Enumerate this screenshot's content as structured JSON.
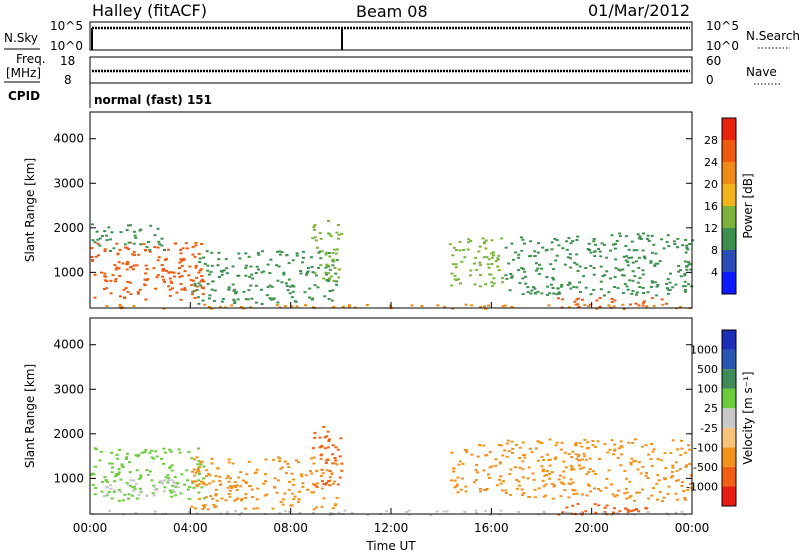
{
  "header": {
    "station": "Halley (fitACF)",
    "beam": "Beam 08",
    "date": "01/Mar/2012"
  },
  "nsky_panel": {
    "left_label": "N.Sky",
    "left_ticks": [
      "10^5",
      "10^0"
    ],
    "right_ticks": [
      "10^5",
      "10^0"
    ],
    "right_label": "N.Search"
  },
  "freq_panel": {
    "left_label_1": "Freq.",
    "left_label_2": "[MHz]",
    "left_ticks": [
      "18",
      "8"
    ],
    "right_ticks": [
      "60",
      "0"
    ],
    "right_label": "Nave"
  },
  "cpid": {
    "label": "CPID",
    "value": "normal (fast) 151"
  },
  "colors": {
    "power_scale": [
      "#0a1cff",
      "#2b4db8",
      "#3d8f4e",
      "#7bb33b",
      "#f3b51a",
      "#f08a16",
      "#f05a10",
      "#e8240c"
    ],
    "velocity_scale": [
      "#e81c10",
      "#f25f12",
      "#f3901a",
      "#f7c27a",
      "#c8c8c8",
      "#6acb3b",
      "#3e8a58",
      "#2a55b0",
      "#1b2eb8"
    ]
  },
  "chart_data": [
    {
      "type": "heatmap",
      "name": "power",
      "ylabel": "Slant Range [km]",
      "xlabel": "",
      "x_ticks": [
        "00:00",
        "04:00",
        "08:00",
        "12:00",
        "16:00",
        "20:00",
        "00:00"
      ],
      "xlim": [
        0,
        24
      ],
      "ylim": [
        200,
        4600
      ],
      "y_ticks": [
        1000,
        2000,
        3000,
        4000
      ],
      "colorbar": {
        "label": "Power [dB]",
        "ticks": [
          4,
          8,
          12,
          16,
          20,
          24,
          28
        ],
        "range": [
          0,
          32
        ]
      },
      "regions": [
        {
          "t0": 0.0,
          "t1": 4.5,
          "r0": 400,
          "r1": 1700,
          "value": 26
        },
        {
          "t0": 0.0,
          "t1": 3.0,
          "r0": 1500,
          "r1": 2100,
          "value": 8
        },
        {
          "t0": 4.0,
          "t1": 9.8,
          "r0": 300,
          "r1": 1500,
          "value": 8
        },
        {
          "t0": 8.8,
          "t1": 10.0,
          "r0": 800,
          "r1": 2200,
          "value": 14
        },
        {
          "t0": 14.3,
          "t1": 16.5,
          "r0": 700,
          "r1": 1800,
          "value": 12
        },
        {
          "t0": 16.5,
          "t1": 24.0,
          "r0": 500,
          "r1": 1900,
          "value": 8
        },
        {
          "t0": 0.0,
          "t1": 24.0,
          "r0": 200,
          "r1": 300,
          "value": 22
        },
        {
          "t0": 18.5,
          "t1": 23.0,
          "r0": 200,
          "r1": 450,
          "value": 26
        }
      ]
    },
    {
      "type": "heatmap",
      "name": "velocity",
      "ylabel": "Slant Range [km]",
      "xlabel": "Time UT",
      "x_ticks": [
        "00:00",
        "04:00",
        "08:00",
        "12:00",
        "16:00",
        "20:00",
        "00:00"
      ],
      "xlim": [
        0,
        24
      ],
      "ylim": [
        200,
        4600
      ],
      "y_ticks": [
        1000,
        2000,
        3000,
        4000
      ],
      "colorbar": {
        "label": "Velocity [m s⁻¹]",
        "ticks": [
          -1000,
          -500,
          -100,
          -25,
          25,
          100,
          500,
          1000
        ]
      },
      "regions": [
        {
          "t0": 0.0,
          "t1": 4.5,
          "r0": 500,
          "r1": 1700,
          "value": 100
        },
        {
          "t0": 0.5,
          "t1": 3.5,
          "r0": 600,
          "r1": 1000,
          "value": 25
        },
        {
          "t0": 4.0,
          "t1": 9.8,
          "r0": 300,
          "r1": 1500,
          "value": -100
        },
        {
          "t0": 8.8,
          "t1": 10.0,
          "r0": 800,
          "r1": 2200,
          "value": -500
        },
        {
          "t0": 14.3,
          "t1": 16.5,
          "r0": 700,
          "r1": 1800,
          "value": -100
        },
        {
          "t0": 16.5,
          "t1": 24.0,
          "r0": 500,
          "r1": 1900,
          "value": -100
        },
        {
          "t0": 18.5,
          "t1": 23.0,
          "r0": 200,
          "r1": 450,
          "value": -500
        },
        {
          "t0": 0.0,
          "t1": 24.0,
          "r0": 200,
          "r1": 300,
          "value": 25
        }
      ]
    }
  ]
}
